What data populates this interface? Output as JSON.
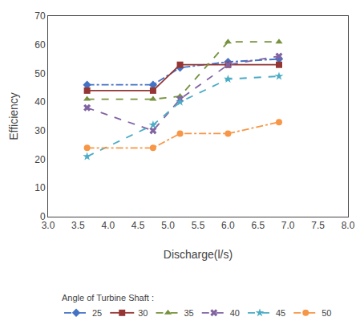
{
  "chart_data": {
    "type": "line",
    "xlabel": "Discharge(l/s)",
    "ylabel": "Efficiency",
    "x": [
      3.65,
      4.75,
      5.2,
      6.0,
      6.85
    ],
    "xlim": [
      3.0,
      8.0
    ],
    "ylim": [
      0,
      70
    ],
    "xticks": [
      {
        "value": 3.0,
        "label": "3.0"
      },
      3.5,
      {
        "value": 4.0,
        "label": "4.0"
      },
      4.5,
      {
        "value": 5.0,
        "label": "5.0"
      },
      5.5,
      {
        "value": 6.0,
        "label": "6.0"
      },
      6.5,
      {
        "value": 7.0,
        "label": "7.0"
      },
      7.5,
      {
        "value": 8.0,
        "label": "8.0"
      }
    ],
    "yticks": [
      0,
      10,
      20,
      30,
      40,
      50,
      60,
      70
    ],
    "legend_title": "Angle of Turbine Shaft :",
    "legend": "bottom",
    "grid": false,
    "series": [
      {
        "name": "25",
        "color": "#4472C4",
        "line_style": "dashdot",
        "marker": "diamond",
        "values": [
          46,
          46,
          52,
          54,
          55
        ]
      },
      {
        "name": "30",
        "color": "#943634",
        "line_style": "solid",
        "marker": "square",
        "values": [
          44,
          44,
          53,
          53,
          53
        ]
      },
      {
        "name": "35",
        "color": "#76923C",
        "line_style": "dash",
        "marker": "triangle-up",
        "values": [
          41,
          41,
          42,
          61,
          61
        ]
      },
      {
        "name": "40",
        "color": "#8064A2",
        "line_style": "dash",
        "marker": "x",
        "values": [
          38,
          30,
          41,
          53,
          56
        ]
      },
      {
        "name": "45",
        "color": "#4BACC6",
        "line_style": "dash",
        "marker": "star",
        "values": [
          21,
          32,
          40,
          48,
          49
        ]
      },
      {
        "name": "50",
        "color": "#F79646",
        "line_style": "dashdot",
        "marker": "circle",
        "values": [
          24,
          24,
          29,
          29,
          33
        ]
      }
    ]
  }
}
